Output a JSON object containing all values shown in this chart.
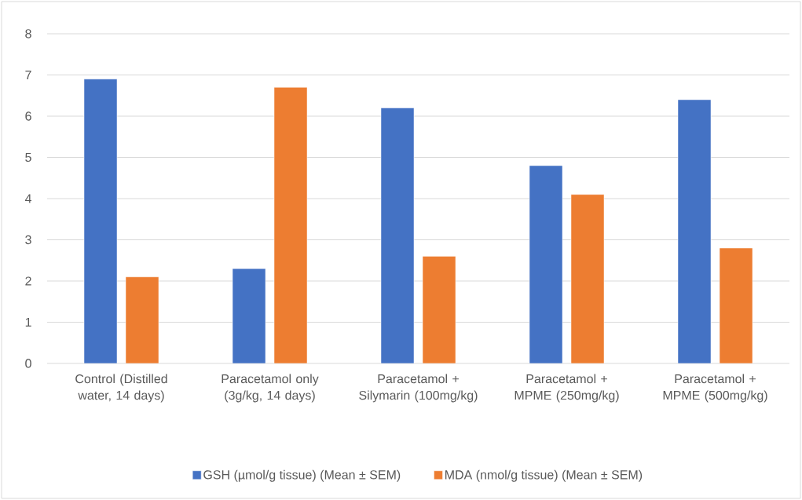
{
  "chart_data": {
    "type": "bar",
    "categories": [
      "Control (Distilled water, 14 days)",
      "Paracetamol only (3g/kg, 14 days)",
      "Paracetamol + Silymarin (100mg/kg)",
      "Paracetamol + MPME (250mg/kg)",
      "Paracetamol + MPME (500mg/kg)"
    ],
    "series": [
      {
        "name": "GSH (µmol/g tissue) (Mean ± SEM)",
        "color": "#4472c4",
        "values": [
          6.9,
          2.3,
          6.2,
          4.8,
          6.4
        ]
      },
      {
        "name": "MDA (nmol/g tissue) (Mean ± SEM)",
        "color": "#ed7d31",
        "values": [
          2.1,
          6.7,
          2.6,
          4.1,
          2.8
        ]
      }
    ],
    "ylim": [
      0,
      8
    ],
    "yticks": [
      0,
      1,
      2,
      3,
      4,
      5,
      6,
      7,
      8
    ],
    "grid": "y",
    "legend": "bottom"
  }
}
